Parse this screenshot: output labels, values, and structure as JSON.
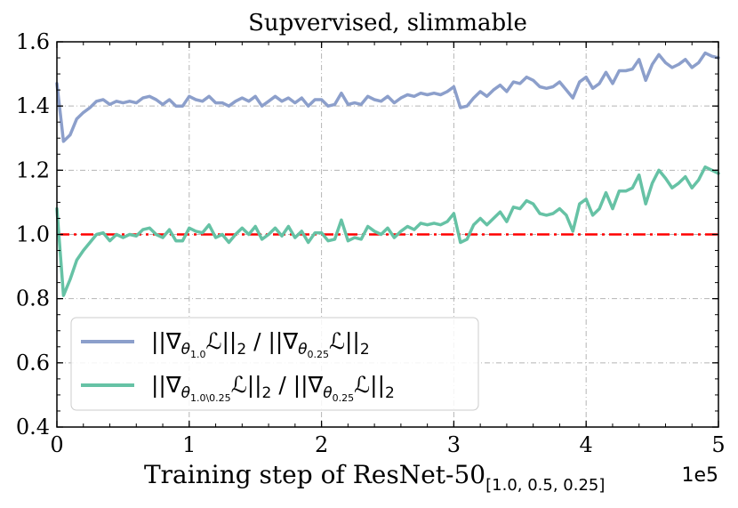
{
  "chart_data": {
    "type": "line",
    "title": "Supvervised, slimmable",
    "xlabel": "Training step of ResNet-50",
    "xlabel_subscript": "[1.0, 0.5, 0.25]",
    "x_multiplier": "1e5",
    "xlim": [
      0,
      5
    ],
    "ylim": [
      0.4,
      1.6
    ],
    "xticks": [
      0,
      1,
      2,
      3,
      4,
      5
    ],
    "xtick_labels": [
      "0",
      "1",
      "2",
      "3",
      "4",
      "5"
    ],
    "yticks": [
      0.4,
      0.6,
      0.8,
      1.0,
      1.2,
      1.4,
      1.6
    ],
    "ytick_labels": [
      "0.4",
      "0.6",
      "0.8",
      "1.0",
      "1.2",
      "1.4",
      "1.6"
    ],
    "grid": true,
    "legend_position": "bottom-left",
    "reference_line": {
      "y": 1.0,
      "color": "#ff0000",
      "style": "dash-dot"
    },
    "series": [
      {
        "name": "||∇θ1.0 L||2 / ||∇θ0.25 L||2",
        "legend": {
          "prefix": "||∇",
          "sub": "θ",
          "subsub": "1.0",
          "mid": "ℒ||",
          "norm": "2",
          "sep": " / ||∇",
          "sub2": "θ",
          "subsub2": "0.25",
          "mid2": "ℒ||",
          "norm2": "2"
        },
        "color": "#8c9fcb",
        "x": [
          0.0,
          0.05,
          0.1,
          0.15,
          0.2,
          0.25,
          0.3,
          0.35,
          0.4,
          0.45,
          0.5,
          0.55,
          0.6,
          0.65,
          0.7,
          0.75,
          0.8,
          0.85,
          0.9,
          0.95,
          1.0,
          1.05,
          1.1,
          1.15,
          1.2,
          1.25,
          1.3,
          1.35,
          1.4,
          1.45,
          1.5,
          1.55,
          1.6,
          1.65,
          1.7,
          1.75,
          1.8,
          1.85,
          1.9,
          1.95,
          2.0,
          2.05,
          2.1,
          2.15,
          2.2,
          2.25,
          2.3,
          2.35,
          2.4,
          2.45,
          2.5,
          2.55,
          2.6,
          2.65,
          2.7,
          2.75,
          2.8,
          2.85,
          2.9,
          2.95,
          3.0,
          3.05,
          3.1,
          3.15,
          3.2,
          3.25,
          3.3,
          3.35,
          3.4,
          3.45,
          3.5,
          3.55,
          3.6,
          3.65,
          3.7,
          3.75,
          3.8,
          3.85,
          3.9,
          3.95,
          4.0,
          4.05,
          4.1,
          4.15,
          4.2,
          4.25,
          4.3,
          4.35,
          4.4,
          4.45,
          4.5,
          4.55,
          4.6,
          4.65,
          4.7,
          4.75,
          4.8,
          4.85,
          4.9,
          4.95,
          5.0
        ],
        "values": [
          1.47,
          1.29,
          1.31,
          1.36,
          1.38,
          1.395,
          1.415,
          1.42,
          1.405,
          1.415,
          1.41,
          1.415,
          1.41,
          1.425,
          1.43,
          1.42,
          1.405,
          1.42,
          1.4,
          1.4,
          1.43,
          1.42,
          1.415,
          1.43,
          1.41,
          1.41,
          1.4,
          1.415,
          1.425,
          1.415,
          1.43,
          1.4,
          1.415,
          1.43,
          1.415,
          1.425,
          1.41,
          1.425,
          1.4,
          1.42,
          1.42,
          1.4,
          1.405,
          1.44,
          1.405,
          1.41,
          1.405,
          1.43,
          1.42,
          1.415,
          1.43,
          1.41,
          1.425,
          1.435,
          1.43,
          1.44,
          1.435,
          1.44,
          1.435,
          1.445,
          1.46,
          1.395,
          1.4,
          1.425,
          1.445,
          1.43,
          1.45,
          1.465,
          1.445,
          1.475,
          1.47,
          1.49,
          1.48,
          1.46,
          1.455,
          1.46,
          1.475,
          1.45,
          1.425,
          1.475,
          1.49,
          1.455,
          1.47,
          1.505,
          1.47,
          1.51,
          1.51,
          1.515,
          1.545,
          1.48,
          1.53,
          1.56,
          1.535,
          1.52,
          1.53,
          1.545,
          1.52,
          1.535,
          1.565,
          1.555,
          1.55
        ]
      },
      {
        "name": "||∇θ1.0\\0.25 L||2 / ||∇θ0.25 L||2",
        "legend": {
          "prefix": "||∇",
          "sub": "θ",
          "subsub": "1.0\\0.25",
          "mid": "ℒ||",
          "norm": "2",
          "sep": " / ||∇",
          "sub2": "θ",
          "subsub2": "0.25",
          "mid2": "ℒ||",
          "norm2": "2"
        },
        "color": "#66c2a5",
        "x": [
          0.0,
          0.05,
          0.1,
          0.15,
          0.2,
          0.25,
          0.3,
          0.35,
          0.4,
          0.45,
          0.5,
          0.55,
          0.6,
          0.65,
          0.7,
          0.75,
          0.8,
          0.85,
          0.9,
          0.95,
          1.0,
          1.05,
          1.1,
          1.15,
          1.2,
          1.25,
          1.3,
          1.35,
          1.4,
          1.45,
          1.5,
          1.55,
          1.6,
          1.65,
          1.7,
          1.75,
          1.8,
          1.85,
          1.9,
          1.95,
          2.0,
          2.05,
          2.1,
          2.15,
          2.2,
          2.25,
          2.3,
          2.35,
          2.4,
          2.45,
          2.5,
          2.55,
          2.6,
          2.65,
          2.7,
          2.75,
          2.8,
          2.85,
          2.9,
          2.95,
          3.0,
          3.05,
          3.1,
          3.15,
          3.2,
          3.25,
          3.3,
          3.35,
          3.4,
          3.45,
          3.5,
          3.55,
          3.6,
          3.65,
          3.7,
          3.75,
          3.8,
          3.85,
          3.9,
          3.95,
          4.0,
          4.05,
          4.1,
          4.15,
          4.2,
          4.25,
          4.3,
          4.35,
          4.4,
          4.45,
          4.5,
          4.55,
          4.6,
          4.65,
          4.7,
          4.75,
          4.8,
          4.85,
          4.9,
          4.95,
          5.0
        ],
        "values": [
          1.08,
          0.81,
          0.86,
          0.92,
          0.95,
          0.975,
          1.0,
          1.005,
          0.98,
          1.0,
          0.99,
          1.0,
          0.995,
          1.015,
          1.02,
          1.0,
          0.99,
          1.015,
          0.98,
          0.98,
          1.02,
          1.01,
          1.005,
          1.03,
          0.99,
          1.0,
          0.975,
          1.0,
          1.02,
          1.0,
          1.025,
          0.985,
          1.0,
          1.02,
          0.995,
          1.025,
          0.99,
          1.01,
          0.975,
          1.005,
          1.005,
          0.98,
          0.985,
          1.045,
          0.98,
          0.99,
          0.985,
          1.025,
          1.01,
          1.0,
          1.02,
          0.99,
          1.01,
          1.025,
          1.015,
          1.035,
          1.03,
          1.035,
          1.03,
          1.04,
          1.065,
          0.975,
          0.985,
          1.03,
          1.05,
          1.03,
          1.05,
          1.07,
          1.04,
          1.085,
          1.08,
          1.105,
          1.095,
          1.065,
          1.06,
          1.065,
          1.08,
          1.06,
          1.01,
          1.095,
          1.11,
          1.06,
          1.08,
          1.13,
          1.08,
          1.135,
          1.135,
          1.145,
          1.185,
          1.095,
          1.16,
          1.2,
          1.175,
          1.145,
          1.16,
          1.18,
          1.145,
          1.17,
          1.21,
          1.2,
          1.19
        ]
      }
    ]
  }
}
